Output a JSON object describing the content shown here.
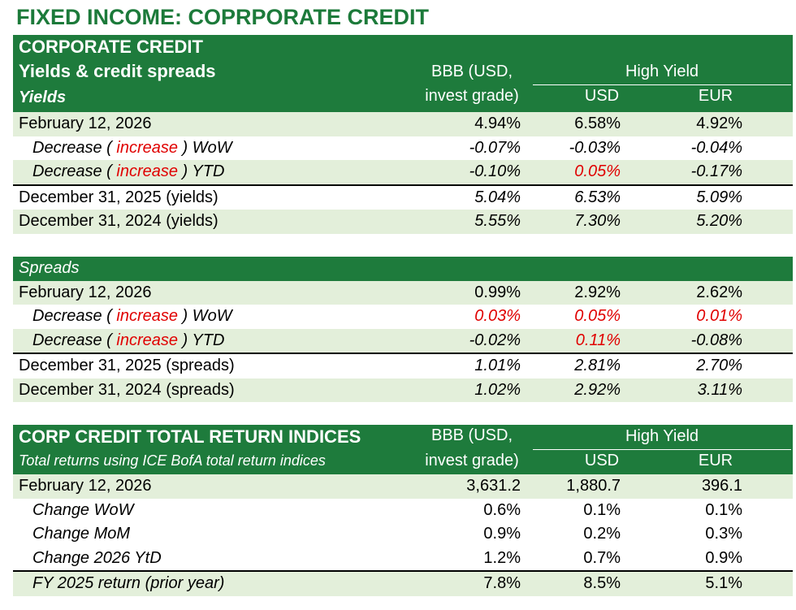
{
  "title": "FIXED INCOME: COPRPORATE CREDIT",
  "yields": {
    "header": {
      "line1": "CORPORATE CREDIT",
      "line2": "Yields & credit spreads",
      "line3": "Yields",
      "bbb_line1": "BBB (USD,",
      "bbb_line2": "invest grade)",
      "hy": "High Yield",
      "usd": "USD",
      "eur": "EUR"
    },
    "rows": [
      {
        "label": "February 12, 2026",
        "bbb": "4.94%",
        "usd": "6.58%",
        "eur": "4.92%"
      },
      {
        "label_pre": "Decrease ( ",
        "label_red": "increase",
        "label_post": " ) WoW",
        "bbb": "-0.07%",
        "usd": "-0.03%",
        "eur": "-0.04%"
      },
      {
        "label_pre": "Decrease ( ",
        "label_red": "increase",
        "label_post": " ) YTD",
        "bbb": "-0.10%",
        "usd": "0.05%",
        "eur": "-0.17%"
      },
      {
        "label": "December 31, 2025 (yields)",
        "bbb": "5.04%",
        "usd": "6.53%",
        "eur": "5.09%"
      },
      {
        "label": "December 31, 2024 (yields)",
        "bbb": "5.55%",
        "usd": "7.30%",
        "eur": "5.20%"
      }
    ]
  },
  "spreads": {
    "header": "Spreads",
    "rows": [
      {
        "label": "February 12, 2026",
        "bbb": "0.99%",
        "usd": "2.92%",
        "eur": "2.62%"
      },
      {
        "label_pre": "Decrease ( ",
        "label_red": "increase",
        "label_post": " ) WoW",
        "bbb": "0.03%",
        "usd": "0.05%",
        "eur": "0.01%"
      },
      {
        "label_pre": "Decrease ( ",
        "label_red": "increase",
        "label_post": " ) YTD",
        "bbb": "-0.02%",
        "usd": "0.11%",
        "eur": "-0.08%"
      },
      {
        "label": "December 31, 2025 (spreads)",
        "bbb": "1.01%",
        "usd": "2.81%",
        "eur": "2.70%"
      },
      {
        "label": "December 31, 2024 (spreads)",
        "bbb": "1.02%",
        "usd": "2.92%",
        "eur": "3.11%"
      }
    ]
  },
  "returns": {
    "header": {
      "line1": "CORP CREDIT TOTAL RETURN INDICES",
      "line2": "Total returns using ICE BofA total return indices",
      "bbb_line1": "BBB (USD,",
      "bbb_line2": "invest grade)",
      "hy": "High Yield",
      "usd": "USD",
      "eur": "EUR"
    },
    "rows": [
      {
        "label": "February 12, 2026",
        "bbb": "3,631.2",
        "usd": "1,880.7",
        "eur": "396.1"
      },
      {
        "label": "Change WoW",
        "bbb": "0.6%",
        "usd": "0.1%",
        "eur": "0.1%"
      },
      {
        "label": "Change MoM",
        "bbb": "0.9%",
        "usd": "0.2%",
        "eur": "0.3%"
      },
      {
        "label": "Change 2026 YtD",
        "bbb": "1.2%",
        "usd": "0.7%",
        "eur": "0.9%"
      },
      {
        "label": "FY 2025 return (prior year)",
        "bbb": "7.8%",
        "usd": "8.5%",
        "eur": "5.1%"
      }
    ]
  }
}
